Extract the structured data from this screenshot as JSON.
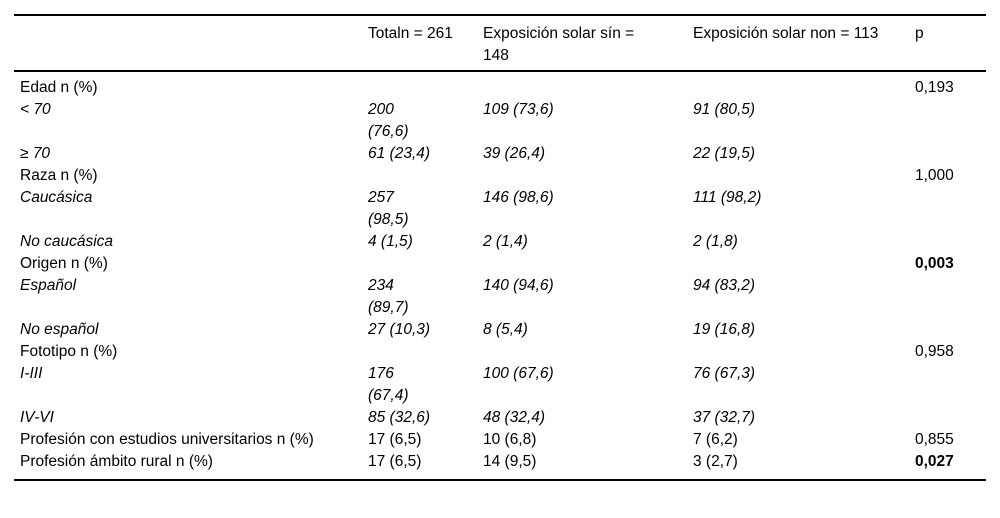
{
  "table": {
    "columns": [
      "",
      "Totaln = 261",
      "Exposición solar sín = 148",
      "Exposición solar non = 113",
      "p"
    ],
    "rows": [
      {
        "label": "Edad n (%)",
        "italic": false,
        "total": "",
        "sin": "",
        "non": "",
        "p": "0,193",
        "p_bold": false
      },
      {
        "label": "< 70",
        "italic": true,
        "total": "200 (76,6)",
        "sin": "109 (73,6)",
        "non": "91 (80,5)",
        "p": "",
        "p_bold": false
      },
      {
        "label": "≥ 70",
        "italic": true,
        "total": "61 (23,4)",
        "sin": "39 (26,4)",
        "non": "22 (19,5)",
        "p": "",
        "p_bold": false
      },
      {
        "label": "Raza n (%)",
        "italic": false,
        "total": "",
        "sin": "",
        "non": "",
        "p": "1,000",
        "p_bold": false
      },
      {
        "label": "Caucásica",
        "italic": true,
        "total": "257 (98,5)",
        "sin": "146 (98,6)",
        "non": "111 (98,2)",
        "p": "",
        "p_bold": false
      },
      {
        "label": "No caucásica",
        "italic": true,
        "total": "4 (1,5)",
        "sin": "2 (1,4)",
        "non": "2 (1,8)",
        "p": "",
        "p_bold": false
      },
      {
        "label": "Origen n (%)",
        "italic": false,
        "total": "",
        "sin": "",
        "non": "",
        "p": "0,003",
        "p_bold": true
      },
      {
        "label": "Español",
        "italic": true,
        "total": "234 (89,7)",
        "sin": "140 (94,6)",
        "non": "94 (83,2)",
        "p": "",
        "p_bold": false
      },
      {
        "label": "No español",
        "italic": true,
        "total": "27 (10,3)",
        "sin": "8 (5,4)",
        "non": "19 (16,8)",
        "p": "",
        "p_bold": false
      },
      {
        "label": "Fototipo n (%)",
        "italic": false,
        "total": "",
        "sin": "",
        "non": "",
        "p": "0,958",
        "p_bold": false
      },
      {
        "label": "I-III",
        "italic": true,
        "total": "176 (67,4)",
        "sin": "100 (67,6)",
        "non": "76 (67,3)",
        "p": "",
        "p_bold": false
      },
      {
        "label": "IV-VI",
        "italic": true,
        "total": "85 (32,6)",
        "sin": "48 (32,4)",
        "non": "37 (32,7)",
        "p": "",
        "p_bold": false
      },
      {
        "label": "Profesión con estudios universitarios n (%)",
        "italic": false,
        "total": "17 (6,5)",
        "sin": "10 (6,8)",
        "non": "7 (6,2)",
        "p": "0,855",
        "p_bold": false
      },
      {
        "label": "Profesión ámbito rural n (%)",
        "italic": false,
        "total": "17 (6,5)",
        "sin": "14 (9,5)",
        "non": "3 (2,7)",
        "p": "0,027",
        "p_bold": true
      }
    ]
  },
  "colors": {
    "background": "#ffffff",
    "text": "#000000",
    "rule": "#000000"
  }
}
